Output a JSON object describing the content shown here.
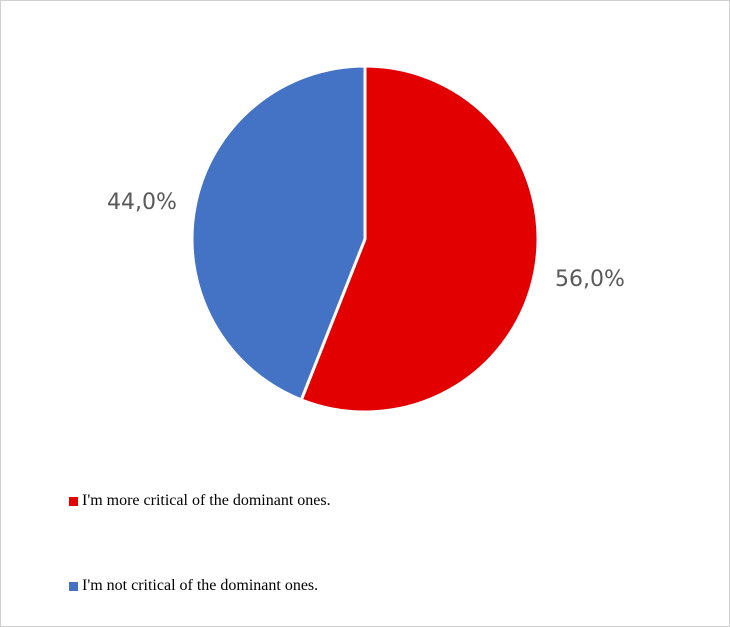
{
  "chart_data": {
    "type": "pie",
    "slices": [
      {
        "label": "I'm more critical of the dominant ones.",
        "value": 56.0,
        "display": "56,0%",
        "color": "#E20000"
      },
      {
        "label": "I'm not critical of the dominant ones.",
        "value": 44.0,
        "display": "44,0%",
        "color": "#4472C4"
      }
    ],
    "legend_position": "bottom-left"
  }
}
